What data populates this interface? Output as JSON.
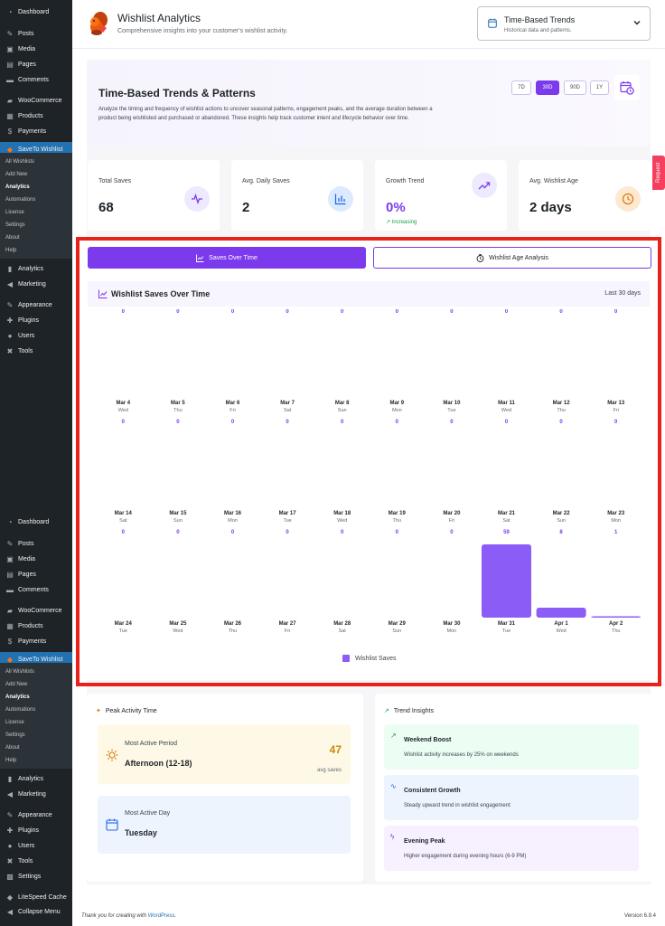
{
  "sidebar": {
    "top": [
      {
        "label": "Dashboard",
        "icon": "dashboard-icon",
        "glyph": "◔"
      },
      {
        "label": "Posts",
        "icon": "pin-icon",
        "glyph": "✎"
      },
      {
        "label": "Media",
        "icon": "media-icon",
        "glyph": "▣"
      },
      {
        "label": "Pages",
        "icon": "pages-icon",
        "glyph": "▤"
      },
      {
        "label": "Comments",
        "icon": "comments-icon",
        "glyph": "▬"
      },
      {
        "label": "WooCommerce",
        "icon": "woo-icon",
        "glyph": "▰"
      },
      {
        "label": "Products",
        "icon": "products-icon",
        "glyph": "▦"
      },
      {
        "label": "Payments",
        "icon": "payments-icon",
        "glyph": "$"
      },
      {
        "label": "SaveTo Wishlist",
        "icon": "squirrel-icon",
        "glyph": "◆"
      }
    ],
    "sub": [
      "All Wishlists",
      "Add New",
      "Analytics",
      "Automations",
      "License",
      "Settings",
      "About",
      "Help"
    ],
    "bottom": [
      {
        "label": "Analytics",
        "icon": "analytics-icon",
        "glyph": "▮"
      },
      {
        "label": "Marketing",
        "icon": "marketing-icon",
        "glyph": "◀"
      },
      {
        "label": "Appearance",
        "icon": "brush-icon",
        "glyph": "✎"
      },
      {
        "label": "Plugins",
        "icon": "plugin-icon",
        "glyph": "✚"
      },
      {
        "label": "Users",
        "icon": "users-icon",
        "glyph": "●"
      },
      {
        "label": "Tools",
        "icon": "tools-icon",
        "glyph": "✖"
      }
    ],
    "bottom2_extra": [
      {
        "label": "Settings",
        "icon": "settings-icon",
        "glyph": "▩"
      },
      {
        "label": "LiteSpeed Cache",
        "icon": "litespeed-icon",
        "glyph": "◆"
      },
      {
        "label": "Collapse Menu",
        "icon": "collapse-icon",
        "glyph": "◀"
      }
    ]
  },
  "header": {
    "title": "Wishlist Analytics",
    "subtitle": "Comprehensive insights into your customer's wishlist activity.",
    "dropdown_title": "Time-Based Trends",
    "dropdown_sub": "Historical data and patterns."
  },
  "hero": {
    "title": "Time-Based Trends & Patterns",
    "description": "Analyze the timing and frequency of wishlist actions to uncover seasonal patterns, engagement peaks, and the average duration between a product being wishlisted and purchased or abandoned. These insights help track customer intent and lifecycle behavior over time.",
    "ranges": [
      "7D",
      "30D",
      "90D",
      "1Y"
    ],
    "selected_range": "30D"
  },
  "stats": [
    {
      "label": "Total Saves",
      "value": "68",
      "icon": "pulse-icon"
    },
    {
      "label": "Avg. Daily Saves",
      "value": "2",
      "icon": "bar-chart-icon"
    },
    {
      "label": "Growth Trend",
      "value": "0%",
      "icon": "trend-up-icon",
      "note": "Increasing"
    },
    {
      "label": "Avg. Wishlist Age",
      "value": "2 days",
      "icon": "clock-icon"
    }
  ],
  "tabs": {
    "active": "Saves Over Time",
    "inactive": "Wishlist Age Analysis"
  },
  "chart_header": {
    "title": "Wishlist Saves Over Time",
    "range": "Last 30 days"
  },
  "request_tab": "Request",
  "peak": {
    "title": "Peak Activity Time",
    "period_label": "Most Active Period",
    "period_value": "Afternoon (12-18)",
    "period_count": "47",
    "period_unit": "avg saves",
    "day_label": "Most Active Day",
    "day_value": "Tuesday"
  },
  "insights": {
    "title": "Trend Insights",
    "items": [
      {
        "title": "Weekend Boost",
        "desc": "Wishlist activity increases by 25% on weekends"
      },
      {
        "title": "Consistent Growth",
        "desc": "Steady upward trend in wishlist engagement"
      },
      {
        "title": "Evening Peak",
        "desc": "Higher engagement during evening hours (6-9 PM)"
      }
    ]
  },
  "footer": {
    "thanks": "Thank you for creating with ",
    "link": "WordPress",
    "thanks_end": ".",
    "version": "Version 6.9.4"
  },
  "colors": {
    "accent": "#7c3aed",
    "bar": "#8b5cf6",
    "wp_blue": "#2271b1"
  },
  "chart_data": {
    "type": "bar",
    "categories": [
      "Mar 4",
      "Mar 5",
      "Mar 6",
      "Mar 7",
      "Mar 8",
      "Mar 9",
      "Mar 10",
      "Mar 11",
      "Mar 12",
      "Mar 13",
      "Mar 14",
      "Mar 15",
      "Mar 16",
      "Mar 17",
      "Mar 18",
      "Mar 19",
      "Mar 20",
      "Mar 21",
      "Mar 22",
      "Mar 23",
      "Mar 24",
      "Mar 25",
      "Mar 26",
      "Mar 27",
      "Mar 28",
      "Mar 29",
      "Mar 30",
      "Mar 31",
      "Apr 1",
      "Apr 2"
    ],
    "weekdays": [
      "Wed",
      "Thu",
      "Fri",
      "Sat",
      "Sun",
      "Mon",
      "Tue",
      "Wed",
      "Thu",
      "Fri",
      "Sat",
      "Sun",
      "Mon",
      "Tue",
      "Wed",
      "Thu",
      "Fri",
      "Sat",
      "Sun",
      "Mon",
      "Tue",
      "Wed",
      "Thu",
      "Fri",
      "Sat",
      "Sun",
      "Mon",
      "Tue",
      "Wed",
      "Thu"
    ],
    "series": [
      {
        "name": "Wishlist Saves",
        "values": [
          0,
          0,
          0,
          0,
          0,
          0,
          0,
          0,
          0,
          0,
          0,
          0,
          0,
          0,
          0,
          0,
          0,
          0,
          0,
          0,
          0,
          0,
          0,
          0,
          0,
          0,
          0,
          59,
          8,
          1
        ]
      }
    ],
    "title": "Wishlist Saves Over Time",
    "rows": 3,
    "per_row": 10
  }
}
